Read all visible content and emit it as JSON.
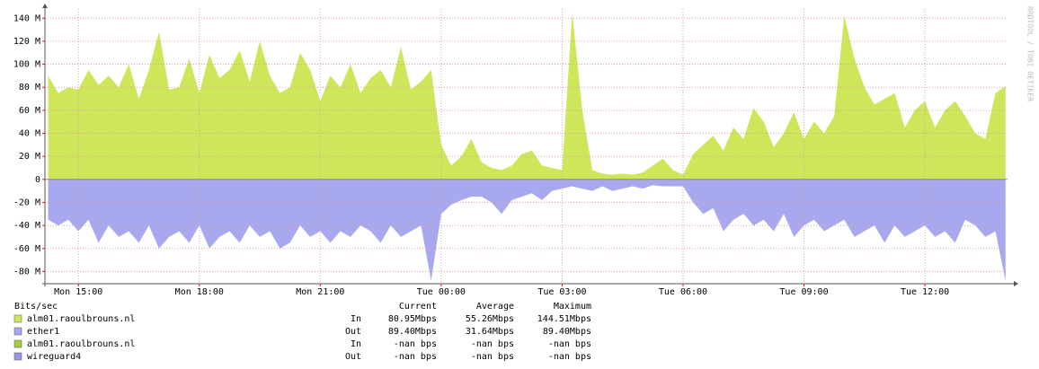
{
  "chart_data": {
    "type": "area",
    "watermark": "RRDTOOL / TOBI OETIKER",
    "legend_title": "Bits/sec",
    "legend_headers": [
      "Current",
      "Average",
      "Maximum"
    ],
    "x": [
      14.25,
      14.5,
      14.75,
      15,
      15.25,
      15.5,
      15.75,
      16,
      16.25,
      16.5,
      16.75,
      17,
      17.25,
      17.5,
      17.75,
      18,
      18.25,
      18.5,
      18.75,
      19,
      19.25,
      19.5,
      19.75,
      20,
      20.25,
      20.5,
      20.75,
      21,
      21.25,
      21.5,
      21.75,
      22,
      22.25,
      22.5,
      22.75,
      23,
      23.25,
      23.5,
      23.75,
      24,
      24.25,
      24.5,
      24.75,
      25,
      25.25,
      25.5,
      25.75,
      26,
      26.25,
      26.5,
      26.75,
      27,
      27.25,
      27.5,
      27.75,
      28,
      28.25,
      28.5,
      28.75,
      29,
      29.25,
      29.5,
      29.75,
      30,
      30.25,
      30.5,
      30.75,
      31,
      31.25,
      31.5,
      31.75,
      32,
      32.25,
      32.5,
      32.75,
      33,
      33.25,
      33.5,
      33.75,
      34,
      34.25,
      34.5,
      34.75,
      35,
      35.25,
      35.5,
      35.75,
      36,
      36.25,
      36.5,
      36.75,
      37,
      37.25,
      37.5,
      37.75,
      38
    ],
    "series": [
      {
        "name": "alm01.raoulbrouns.nl",
        "direction": "In",
        "current": "80.95Mbps",
        "average": "55.26Mbps",
        "maximum": "144.51Mbps",
        "color": "#cde65a",
        "values": [
          90,
          75,
          80,
          78,
          95,
          82,
          90,
          80,
          100,
          70,
          95,
          128,
          78,
          80,
          105,
          75,
          108,
          88,
          95,
          112,
          85,
          120,
          90,
          75,
          80,
          110,
          95,
          68,
          90,
          80,
          100,
          75,
          88,
          95,
          80,
          115,
          78,
          85,
          95,
          30,
          12,
          20,
          35,
          15,
          10,
          8,
          12,
          22,
          25,
          12,
          10,
          8,
          145,
          60,
          8,
          5,
          4,
          5,
          4,
          6,
          12,
          18,
          8,
          4,
          22,
          30,
          38,
          25,
          45,
          35,
          62,
          50,
          28,
          40,
          58,
          35,
          50,
          40,
          55,
          142,
          105,
          80,
          65,
          70,
          75,
          45,
          60,
          68,
          45,
          60,
          68,
          55,
          40,
          35,
          75,
          81
        ]
      },
      {
        "name": "ether1",
        "direction": "Out",
        "current": "89.40Mbps",
        "average": "31.64Mbps",
        "maximum": "89.40Mbps",
        "color": "#a8a8ee",
        "values": [
          -35,
          -40,
          -35,
          -45,
          -35,
          -55,
          -40,
          -50,
          -45,
          -55,
          -40,
          -60,
          -50,
          -45,
          -55,
          -40,
          -60,
          -50,
          -45,
          -55,
          -40,
          -50,
          -45,
          -60,
          -55,
          -40,
          -50,
          -45,
          -55,
          -45,
          -50,
          -40,
          -45,
          -55,
          -40,
          -50,
          -45,
          -40,
          -88,
          -30,
          -22,
          -18,
          -15,
          -15,
          -20,
          -30,
          -18,
          -15,
          -12,
          -18,
          -10,
          -8,
          -6,
          -8,
          -10,
          -6,
          -10,
          -8,
          -6,
          -8,
          -5,
          -6,
          -6,
          -6,
          -20,
          -30,
          -25,
          -45,
          -35,
          -30,
          -40,
          -35,
          -45,
          -30,
          -50,
          -40,
          -35,
          -45,
          -40,
          -35,
          -50,
          -45,
          -40,
          -55,
          -40,
          -50,
          -45,
          -40,
          -50,
          -45,
          -55,
          -35,
          -40,
          -50,
          -45,
          -88
        ]
      }
    ],
    "legend_extra": [
      {
        "name": "alm01.raoulbrouns.nl",
        "direction": "In",
        "current": "-nan bps",
        "average": "-nan bps",
        "maximum": "-nan bps",
        "color": "#a6cc44"
      },
      {
        "name": "wireguard4",
        "direction": "Out",
        "current": "-nan bps",
        "average": "-nan bps",
        "maximum": "-nan bps",
        "color": "#9898dc"
      }
    ],
    "xlim": [
      14.17,
      38.05
    ],
    "xticks": [
      {
        "value": 15,
        "label": "Mon 15:00"
      },
      {
        "value": 18,
        "label": "Mon 18:00"
      },
      {
        "value": 21,
        "label": "Mon 21:00"
      },
      {
        "value": 24,
        "label": "Tue 00:00"
      },
      {
        "value": 27,
        "label": "Tue 03:00"
      },
      {
        "value": 30,
        "label": "Tue 06:00"
      },
      {
        "value": 33,
        "label": "Tue 09:00"
      },
      {
        "value": 36,
        "label": "Tue 12:00"
      }
    ],
    "ylim": [
      -90.6,
      148
    ],
    "yticks": [
      {
        "value": -80,
        "label": "-80 M"
      },
      {
        "value": -60,
        "label": "-60 M"
      },
      {
        "value": -40,
        "label": "-40 M"
      },
      {
        "value": -20,
        "label": "-20 M"
      },
      0,
      {
        "value": 20,
        "label": "20 M"
      },
      {
        "value": 40,
        "label": "40 M"
      },
      {
        "value": 60,
        "label": "60 M"
      },
      {
        "value": 80,
        "label": "80 M"
      },
      {
        "value": 100,
        "label": "100 M"
      },
      {
        "value": 120,
        "label": "120 M"
      },
      {
        "value": 140,
        "label": "140 M"
      }
    ],
    "grid": true
  }
}
